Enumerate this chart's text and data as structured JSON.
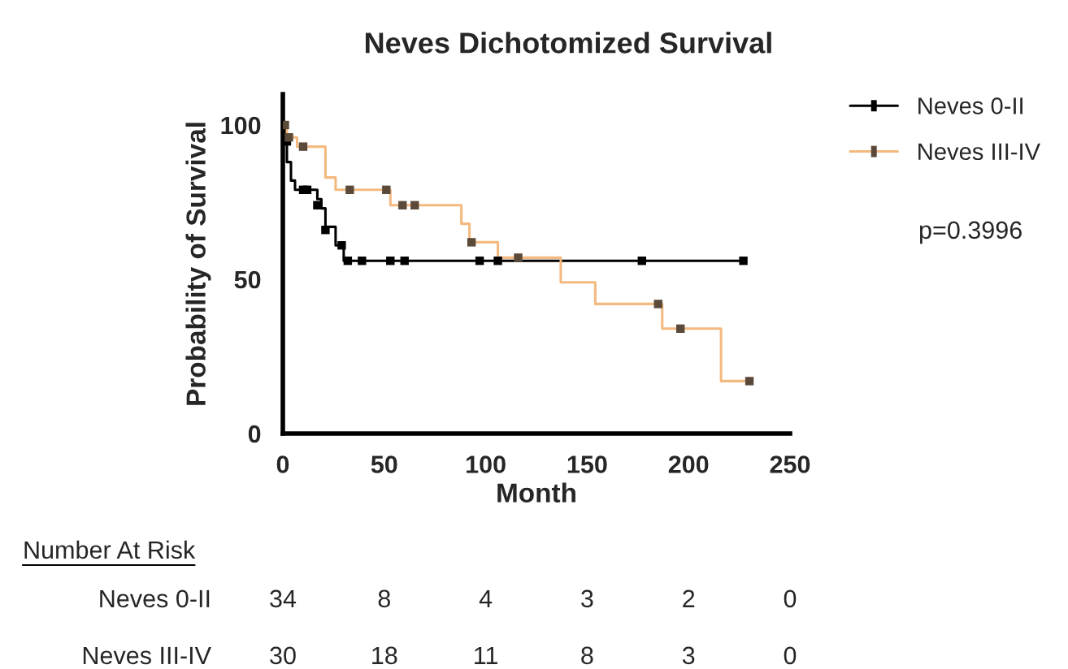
{
  "chart_data": {
    "type": "step",
    "title": "Neves Dichotomized Survival",
    "xlabel": "Month",
    "ylabel": "Probability of Survival",
    "xlim": [
      0,
      250
    ],
    "xticks": [
      0,
      50,
      100,
      150,
      200,
      250
    ],
    "ylim": [
      0,
      110
    ],
    "yticks": [
      0,
      50,
      100
    ],
    "grid": false,
    "legend": "top right",
    "series": [
      {
        "name": "Neves 0-II",
        "color": "#000000",
        "x": [
          0,
          1,
          2,
          4,
          6,
          17,
          19,
          21,
          26,
          30,
          227
        ],
        "values": [
          100,
          94.7,
          88,
          82,
          79,
          76,
          73,
          67,
          61,
          56,
          56
        ]
      },
      {
        "type": "scatter",
        "marker": "square",
        "color": "#000000",
        "x": [
          2,
          10,
          12,
          17,
          21,
          29,
          32,
          39,
          53,
          60,
          97,
          106,
          177,
          227
        ],
        "values": [
          94.7,
          79,
          79,
          74,
          66,
          61,
          56,
          56,
          56,
          56,
          56,
          56,
          56,
          56
        ]
      },
      {
        "name": "Neves III-IV",
        "color": "#f4b97f",
        "x": [
          0,
          2,
          7,
          21,
          26,
          53,
          88,
          92,
          106,
          137,
          154,
          187,
          216,
          230
        ],
        "values": [
          100,
          96,
          93,
          83,
          79,
          74,
          68,
          62,
          57,
          49,
          42,
          34,
          17,
          17
        ]
      },
      {
        "type": "scatter",
        "marker": "square",
        "color": "#5b4a3a",
        "x": [
          1,
          3,
          10,
          33,
          51,
          59,
          65,
          93,
          116,
          185,
          196,
          230
        ],
        "values": [
          100,
          96,
          93,
          79,
          79,
          74,
          74,
          62,
          57,
          42,
          34,
          17
        ]
      }
    ],
    "annotations": [
      "p=0.3996",
      "Number At Risk",
      "Neves 0-II",
      "34",
      "8",
      "4",
      "3",
      "2",
      "0",
      "Neves III-IV",
      "30",
      "18",
      "11",
      "8",
      "3",
      "0"
    ]
  }
}
